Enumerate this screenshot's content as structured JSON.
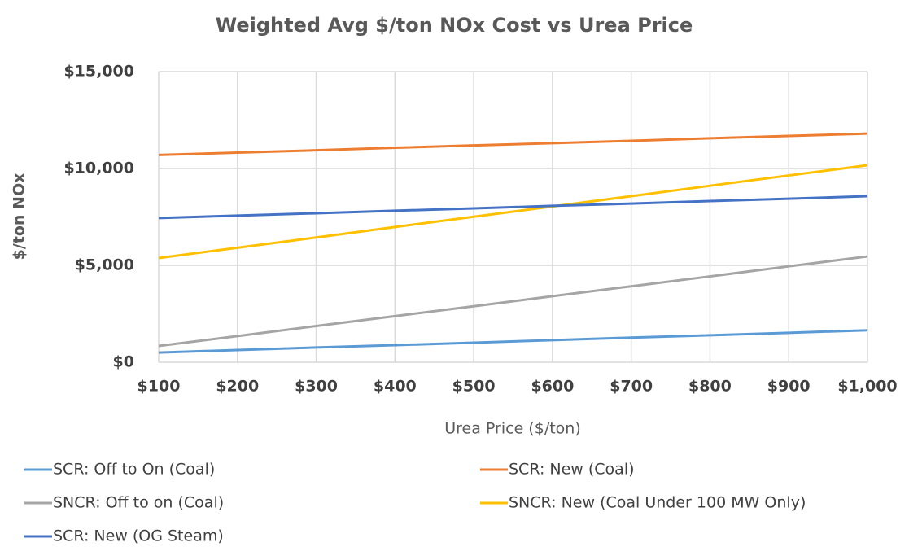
{
  "chart_data": {
    "type": "line",
    "title": "Weighted Avg $/ton NOx Cost vs Urea Price",
    "x_label": "Urea Price ($/ton)",
    "y_label": "$/ton NOx",
    "x": [
      100,
      200,
      300,
      400,
      500,
      600,
      700,
      800,
      900,
      1000
    ],
    "xlim": [
      100,
      1000
    ],
    "xticks": [
      {
        "value": 100,
        "label": "$100"
      },
      {
        "value": 200,
        "label": "$200"
      },
      {
        "value": 300,
        "label": "$300"
      },
      {
        "value": 400,
        "label": "$400"
      },
      {
        "value": 500,
        "label": "$500"
      },
      {
        "value": 600,
        "label": "$600"
      },
      {
        "value": 700,
        "label": "$700"
      },
      {
        "value": 800,
        "label": "$800"
      },
      {
        "value": 900,
        "label": "$900"
      },
      {
        "value": 1000,
        "label": "$1,000"
      }
    ],
    "ylim": [
      0,
      15000
    ],
    "yticks": [
      {
        "value": 0,
        "label": "$0"
      },
      {
        "value": 5000,
        "label": "$5,000"
      },
      {
        "value": 10000,
        "label": "$10,000"
      },
      {
        "value": 15000,
        "label": "$15,000"
      }
    ],
    "grid": true,
    "legend": "bottom",
    "series": [
      {
        "name": "SCR: Off to On (Coal)",
        "color": "#5b9bd5",
        "values": [
          500,
          630,
          760,
          880,
          1010,
          1140,
          1270,
          1390,
          1520,
          1650
        ]
      },
      {
        "name": "SCR: New (Coal)",
        "color": "#ed7d31",
        "values": [
          10700,
          10820,
          10940,
          11070,
          11190,
          11310,
          11430,
          11560,
          11680,
          11800
        ]
      },
      {
        "name": "SNCR: Off to on (Coal)",
        "color": "#a5a5a5",
        "values": [
          840,
          1350,
          1870,
          2380,
          2890,
          3410,
          3920,
          4430,
          4950,
          5460
        ]
      },
      {
        "name": "SNCR: New (Coal Under 100 MW Only)",
        "color": "#ffc000",
        "values": [
          5380,
          5910,
          6440,
          6980,
          7510,
          8040,
          8570,
          9110,
          9640,
          10170
        ]
      },
      {
        "name": "SCR: New (OG Steam)",
        "color": "#4472c4",
        "values": [
          7440,
          7570,
          7690,
          7820,
          7940,
          8070,
          8190,
          8320,
          8440,
          8570
        ]
      }
    ]
  }
}
